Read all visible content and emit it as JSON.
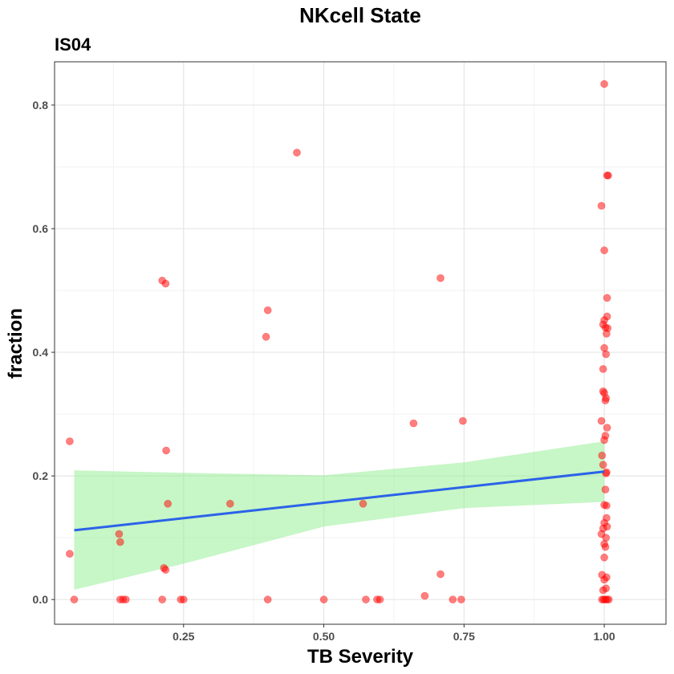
{
  "chart_data": {
    "type": "scatter",
    "title": "NKcell State",
    "subtitle": "IS04",
    "xlabel": "TB Severity",
    "ylabel": "fraction",
    "xlim": [
      0.02,
      1.11
    ],
    "ylim": [
      -0.04,
      0.87
    ],
    "x_ticks": [
      0.25,
      0.5,
      0.75,
      1.0
    ],
    "x_tick_labels": [
      "0.25",
      "0.50",
      "0.75",
      "1.00"
    ],
    "y_ticks": [
      0.0,
      0.2,
      0.4,
      0.6,
      0.8
    ],
    "y_tick_labels": [
      "0.0",
      "0.2",
      "0.4",
      "0.6",
      "0.8"
    ],
    "grid": true,
    "colors": {
      "points": "#ff0000",
      "trend": "#2b63e8",
      "ribbon": "#90ee90"
    },
    "points": [
      {
        "x": 0.047,
        "y": 0.256
      },
      {
        "x": 0.047,
        "y": 0.074
      },
      {
        "x": 0.055,
        "y": 0.0
      },
      {
        "x": 0.135,
        "y": 0.106
      },
      {
        "x": 0.137,
        "y": 0.093
      },
      {
        "x": 0.137,
        "y": 0.0
      },
      {
        "x": 0.142,
        "y": 0.0
      },
      {
        "x": 0.147,
        "y": 0.0
      },
      {
        "x": 0.212,
        "y": 0.516
      },
      {
        "x": 0.218,
        "y": 0.511
      },
      {
        "x": 0.219,
        "y": 0.241
      },
      {
        "x": 0.222,
        "y": 0.155
      },
      {
        "x": 0.215,
        "y": 0.051
      },
      {
        "x": 0.218,
        "y": 0.048
      },
      {
        "x": 0.212,
        "y": 0.0
      },
      {
        "x": 0.245,
        "y": 0.0
      },
      {
        "x": 0.25,
        "y": 0.0
      },
      {
        "x": 0.333,
        "y": 0.155
      },
      {
        "x": 0.397,
        "y": 0.425
      },
      {
        "x": 0.4,
        "y": 0.468
      },
      {
        "x": 0.4,
        "y": 0.0
      },
      {
        "x": 0.452,
        "y": 0.723
      },
      {
        "x": 0.5,
        "y": 0.0
      },
      {
        "x": 0.57,
        "y": 0.155
      },
      {
        "x": 0.575,
        "y": 0.0
      },
      {
        "x": 0.595,
        "y": 0.0
      },
      {
        "x": 0.6,
        "y": 0.0
      },
      {
        "x": 0.66,
        "y": 0.285
      },
      {
        "x": 0.68,
        "y": 0.006
      },
      {
        "x": 0.708,
        "y": 0.52
      },
      {
        "x": 0.708,
        "y": 0.041
      },
      {
        "x": 0.73,
        "y": 0.0
      },
      {
        "x": 0.745,
        "y": 0.0
      },
      {
        "x": 0.748,
        "y": 0.289
      },
      {
        "x": 1.0,
        "y": 0.834
      },
      {
        "x": 1.005,
        "y": 0.686
      },
      {
        "x": 1.007,
        "y": 0.686
      },
      {
        "x": 0.995,
        "y": 0.637
      },
      {
        "x": 1.0,
        "y": 0.565
      },
      {
        "x": 1.005,
        "y": 0.488
      },
      {
        "x": 1.005,
        "y": 0.458
      },
      {
        "x": 1.0,
        "y": 0.452
      },
      {
        "x": 0.998,
        "y": 0.445
      },
      {
        "x": 1.002,
        "y": 0.44
      },
      {
        "x": 1.006,
        "y": 0.439
      },
      {
        "x": 1.004,
        "y": 0.43
      },
      {
        "x": 1.0,
        "y": 0.407
      },
      {
        "x": 1.003,
        "y": 0.397
      },
      {
        "x": 0.998,
        "y": 0.373
      },
      {
        "x": 0.998,
        "y": 0.337
      },
      {
        "x": 1.0,
        "y": 0.334
      },
      {
        "x": 1.003,
        "y": 0.326
      },
      {
        "x": 1.002,
        "y": 0.322
      },
      {
        "x": 0.995,
        "y": 0.289
      },
      {
        "x": 1.005,
        "y": 0.278
      },
      {
        "x": 1.002,
        "y": 0.265
      },
      {
        "x": 1.0,
        "y": 0.258
      },
      {
        "x": 0.996,
        "y": 0.233
      },
      {
        "x": 0.998,
        "y": 0.218
      },
      {
        "x": 1.004,
        "y": 0.206
      },
      {
        "x": 1.003,
        "y": 0.204
      },
      {
        "x": 1.002,
        "y": 0.178
      },
      {
        "x": 1.0,
        "y": 0.153
      },
      {
        "x": 1.004,
        "y": 0.152
      },
      {
        "x": 1.004,
        "y": 0.132
      },
      {
        "x": 1.0,
        "y": 0.124
      },
      {
        "x": 1.005,
        "y": 0.118
      },
      {
        "x": 0.998,
        "y": 0.115
      },
      {
        "x": 0.995,
        "y": 0.106
      },
      {
        "x": 1.003,
        "y": 0.1
      },
      {
        "x": 1.0,
        "y": 0.09
      },
      {
        "x": 1.002,
        "y": 0.085
      },
      {
        "x": 1.0,
        "y": 0.068
      },
      {
        "x": 0.996,
        "y": 0.04
      },
      {
        "x": 1.004,
        "y": 0.036
      },
      {
        "x": 1.0,
        "y": 0.032
      },
      {
        "x": 1.003,
        "y": 0.018
      },
      {
        "x": 0.998,
        "y": 0.015
      },
      {
        "x": 0.996,
        "y": 0.0
      },
      {
        "x": 0.999,
        "y": 0.0
      },
      {
        "x": 1.002,
        "y": 0.0
      },
      {
        "x": 1.005,
        "y": 0.0
      },
      {
        "x": 1.008,
        "y": 0.0
      }
    ],
    "trend_line": {
      "x": [
        0.055,
        1.0
      ],
      "y": [
        0.112,
        0.207
      ]
    },
    "confidence_band": {
      "x": [
        0.055,
        0.25,
        0.5,
        0.75,
        1.0
      ],
      "lower": [
        0.016,
        0.058,
        0.118,
        0.148,
        0.158
      ],
      "upper": [
        0.209,
        0.205,
        0.201,
        0.222,
        0.256
      ]
    }
  }
}
